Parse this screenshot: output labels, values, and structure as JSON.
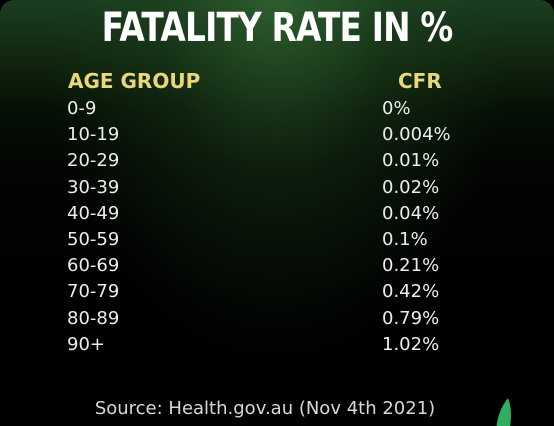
{
  "chart_data": {
    "type": "table",
    "title": "FATALITY RATE IN %",
    "columns": [
      "AGE GROUP",
      "CFR"
    ],
    "rows": [
      {
        "age": "0-9",
        "cfr": "0%"
      },
      {
        "age": "10-19",
        "cfr": "0.004%"
      },
      {
        "age": "20-29",
        "cfr": "0.01%"
      },
      {
        "age": "30-39",
        "cfr": "0.02%"
      },
      {
        "age": "40-49",
        "cfr": "0.04%"
      },
      {
        "age": "50-59",
        "cfr": "0.1%"
      },
      {
        "age": "60-69",
        "cfr": "0.21%"
      },
      {
        "age": "70-79",
        "cfr": "0.42%"
      },
      {
        "age": "80-89",
        "cfr": "0.79%"
      },
      {
        "age": "90+",
        "cfr": "1.02%"
      }
    ],
    "source": "Source: Health.gov.au (Nov 4th 2021)"
  },
  "colors": {
    "header": "#e9d77a",
    "text": "#ececec",
    "title": "#ffffff",
    "accent": "#2fae60"
  },
  "icons": {
    "corner_mark": "green-leaf-icon"
  }
}
